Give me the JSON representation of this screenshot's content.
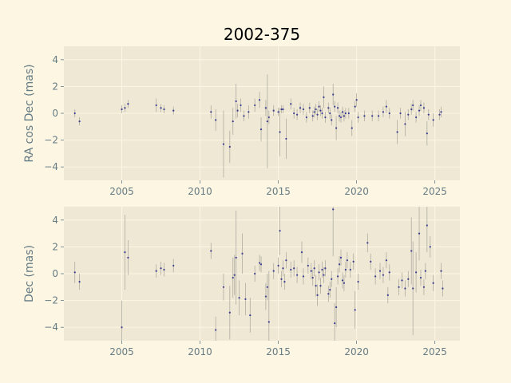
{
  "title": "2002-375",
  "colors": {
    "background": "#fdf6e3",
    "axes": "#eee8d5",
    "grid": "#fdf6e3",
    "point": "#3b3b8f",
    "errorbar": "#b0aca0",
    "text": "#657b83"
  },
  "chart_data": [
    {
      "type": "scatter",
      "ylabel": "RA cos Dec (mas)",
      "xlim": [
        2001.3,
        2026.6
      ],
      "ylim": [
        -5,
        5
      ],
      "xticks": [
        2005,
        2010,
        2015,
        2020,
        2025
      ],
      "yticks": [
        -4,
        -2,
        0,
        2,
        4
      ],
      "grid": true,
      "points": [
        {
          "x": 2002.0,
          "y": 0.0,
          "e": 0.3
        },
        {
          "x": 2002.3,
          "y": -0.6,
          "e": 0.3
        },
        {
          "x": 2005.0,
          "y": 0.3,
          "e": 0.3
        },
        {
          "x": 2005.2,
          "y": 0.4,
          "e": 0.3
        },
        {
          "x": 2005.4,
          "y": 0.7,
          "e": 0.3
        },
        {
          "x": 2007.2,
          "y": 0.6,
          "e": 0.5
        },
        {
          "x": 2007.5,
          "y": 0.4,
          "e": 0.3
        },
        {
          "x": 2007.7,
          "y": 0.3,
          "e": 0.3
        },
        {
          "x": 2008.3,
          "y": 0.2,
          "e": 0.3
        },
        {
          "x": 2010.7,
          "y": 0.1,
          "e": 0.5
        },
        {
          "x": 2011.0,
          "y": -0.5,
          "e": 0.8
        },
        {
          "x": 2011.5,
          "y": -2.3,
          "e": 2.5
        },
        {
          "x": 2011.9,
          "y": -2.5,
          "e": 1.2
        },
        {
          "x": 2012.1,
          "y": -0.6,
          "e": 1.0
        },
        {
          "x": 2012.3,
          "y": 0.9,
          "e": 1.3
        },
        {
          "x": 2012.4,
          "y": 0.2,
          "e": 0.5
        },
        {
          "x": 2012.6,
          "y": 0.6,
          "e": 0.5
        },
        {
          "x": 2012.8,
          "y": -0.2,
          "e": 0.4
        },
        {
          "x": 2013.1,
          "y": 0.1,
          "e": 0.5
        },
        {
          "x": 2013.5,
          "y": 0.6,
          "e": 0.5
        },
        {
          "x": 2013.8,
          "y": 1.0,
          "e": 0.6
        },
        {
          "x": 2013.9,
          "y": -1.2,
          "e": 0.9
        },
        {
          "x": 2014.2,
          "y": 0.4,
          "e": 0.6
        },
        {
          "x": 2014.3,
          "y": -0.6,
          "e": 3.5
        },
        {
          "x": 2014.4,
          "y": -0.3,
          "e": 0.5
        },
        {
          "x": 2014.7,
          "y": 0.2,
          "e": 0.4
        },
        {
          "x": 2015.0,
          "y": 0.1,
          "e": 0.3
        },
        {
          "x": 2015.1,
          "y": -1.4,
          "e": 1.8
        },
        {
          "x": 2015.2,
          "y": 0.3,
          "e": 0.3
        },
        {
          "x": 2015.3,
          "y": 0.3,
          "e": 0.3
        },
        {
          "x": 2015.5,
          "y": -1.9,
          "e": 1.5
        },
        {
          "x": 2015.8,
          "y": 0.7,
          "e": 0.4
        },
        {
          "x": 2016.0,
          "y": 0.0,
          "e": 0.4
        },
        {
          "x": 2016.2,
          "y": -0.1,
          "e": 0.4
        },
        {
          "x": 2016.4,
          "y": 0.4,
          "e": 0.4
        },
        {
          "x": 2016.6,
          "y": 0.3,
          "e": 0.4
        },
        {
          "x": 2016.8,
          "y": -0.3,
          "e": 0.4
        },
        {
          "x": 2017.0,
          "y": 0.4,
          "e": 0.4
        },
        {
          "x": 2017.2,
          "y": -0.2,
          "e": 0.4
        },
        {
          "x": 2017.3,
          "y": 0.1,
          "e": 0.4
        },
        {
          "x": 2017.4,
          "y": 0.3,
          "e": 0.4
        },
        {
          "x": 2017.5,
          "y": -0.1,
          "e": 0.4
        },
        {
          "x": 2017.6,
          "y": 0.5,
          "e": 0.4
        },
        {
          "x": 2017.7,
          "y": 0.2,
          "e": 0.4
        },
        {
          "x": 2017.8,
          "y": 0.0,
          "e": 0.4
        },
        {
          "x": 2017.9,
          "y": 1.2,
          "e": 0.8
        },
        {
          "x": 2018.0,
          "y": -0.3,
          "e": 0.4
        },
        {
          "x": 2018.2,
          "y": 0.4,
          "e": 0.4
        },
        {
          "x": 2018.3,
          "y": 0.0,
          "e": 0.4
        },
        {
          "x": 2018.4,
          "y": -0.5,
          "e": 0.4
        },
        {
          "x": 2018.5,
          "y": 1.4,
          "e": 0.8
        },
        {
          "x": 2018.6,
          "y": 0.5,
          "e": 0.4
        },
        {
          "x": 2018.7,
          "y": -1.1,
          "e": 0.9
        },
        {
          "x": 2018.8,
          "y": 0.4,
          "e": 0.4
        },
        {
          "x": 2018.9,
          "y": -0.2,
          "e": 0.4
        },
        {
          "x": 2019.0,
          "y": -0.3,
          "e": 0.4
        },
        {
          "x": 2019.1,
          "y": 0.1,
          "e": 0.4
        },
        {
          "x": 2019.2,
          "y": -0.2,
          "e": 0.4
        },
        {
          "x": 2019.3,
          "y": 0.0,
          "e": 0.4
        },
        {
          "x": 2019.5,
          "y": 0.0,
          "e": 0.4
        },
        {
          "x": 2019.7,
          "y": -1.1,
          "e": 0.6
        },
        {
          "x": 2019.9,
          "y": 0.5,
          "e": 0.4
        },
        {
          "x": 2020.0,
          "y": 1.0,
          "e": 0.5
        },
        {
          "x": 2020.1,
          "y": -0.3,
          "e": 0.4
        },
        {
          "x": 2020.5,
          "y": -0.2,
          "e": 0.4
        },
        {
          "x": 2021.0,
          "y": -0.2,
          "e": 0.4
        },
        {
          "x": 2021.4,
          "y": -0.2,
          "e": 0.4
        },
        {
          "x": 2021.7,
          "y": 0.1,
          "e": 0.4
        },
        {
          "x": 2021.9,
          "y": 0.5,
          "e": 0.5
        },
        {
          "x": 2022.1,
          "y": 0.0,
          "e": 0.4
        },
        {
          "x": 2022.6,
          "y": -1.4,
          "e": 0.9
        },
        {
          "x": 2022.8,
          "y": 0.0,
          "e": 0.4
        },
        {
          "x": 2023.1,
          "y": -0.8,
          "e": 0.9
        },
        {
          "x": 2023.3,
          "y": -0.1,
          "e": 0.4
        },
        {
          "x": 2023.5,
          "y": 0.3,
          "e": 0.4
        },
        {
          "x": 2023.6,
          "y": 0.6,
          "e": 0.4
        },
        {
          "x": 2023.8,
          "y": -0.3,
          "e": 0.4
        },
        {
          "x": 2024.0,
          "y": 0.2,
          "e": 0.4
        },
        {
          "x": 2024.1,
          "y": 0.6,
          "e": 0.4
        },
        {
          "x": 2024.3,
          "y": 0.4,
          "e": 0.4
        },
        {
          "x": 2024.5,
          "y": -1.5,
          "e": 0.9
        },
        {
          "x": 2024.6,
          "y": -0.1,
          "e": 0.4
        },
        {
          "x": 2024.9,
          "y": -0.5,
          "e": 0.5
        },
        {
          "x": 2025.3,
          "y": -0.1,
          "e": 0.4
        },
        {
          "x": 2025.4,
          "y": 0.1,
          "e": 0.4
        }
      ]
    },
    {
      "type": "scatter",
      "ylabel": "Dec (mas)",
      "xlim": [
        2001.3,
        2026.6
      ],
      "ylim": [
        -5,
        5
      ],
      "xticks": [
        2005,
        2010,
        2015,
        2020,
        2025
      ],
      "yticks": [
        -4,
        -2,
        0,
        2,
        4
      ],
      "grid": true,
      "points": [
        {
          "x": 2002.0,
          "y": 0.1,
          "e": 0.8
        },
        {
          "x": 2002.3,
          "y": -0.6,
          "e": 0.6
        },
        {
          "x": 2005.0,
          "y": -4.0,
          "e": 2.0
        },
        {
          "x": 2005.2,
          "y": 1.6,
          "e": 2.8
        },
        {
          "x": 2005.4,
          "y": 1.2,
          "e": 1.3
        },
        {
          "x": 2007.2,
          "y": 0.2,
          "e": 0.5
        },
        {
          "x": 2007.5,
          "y": 0.4,
          "e": 0.5
        },
        {
          "x": 2007.7,
          "y": 0.3,
          "e": 0.5
        },
        {
          "x": 2008.3,
          "y": 0.6,
          "e": 0.5
        },
        {
          "x": 2010.7,
          "y": 1.7,
          "e": 0.6
        },
        {
          "x": 2011.0,
          "y": -4.2,
          "e": 1.0
        },
        {
          "x": 2011.5,
          "y": -1.0,
          "e": 1.0
        },
        {
          "x": 2011.9,
          "y": -2.9,
          "e": 2.0
        },
        {
          "x": 2012.1,
          "y": -0.3,
          "e": 1.5
        },
        {
          "x": 2012.2,
          "y": -0.1,
          "e": 1.5
        },
        {
          "x": 2012.3,
          "y": 1.2,
          "e": 3.5
        },
        {
          "x": 2012.5,
          "y": -1.8,
          "e": 1.3
        },
        {
          "x": 2012.7,
          "y": 1.5,
          "e": 1.5
        },
        {
          "x": 2012.9,
          "y": -1.9,
          "e": 1.2
        },
        {
          "x": 2013.2,
          "y": -3.1,
          "e": 1.3
        },
        {
          "x": 2013.5,
          "y": 0.0,
          "e": 0.6
        },
        {
          "x": 2013.8,
          "y": 0.8,
          "e": 0.6
        },
        {
          "x": 2013.9,
          "y": 0.7,
          "e": 0.6
        },
        {
          "x": 2014.2,
          "y": -1.7,
          "e": 1.0
        },
        {
          "x": 2014.3,
          "y": -1.0,
          "e": 1.0
        },
        {
          "x": 2014.4,
          "y": -3.6,
          "e": 3.8
        },
        {
          "x": 2014.7,
          "y": 0.2,
          "e": 0.6
        },
        {
          "x": 2015.0,
          "y": 0.6,
          "e": 0.6
        },
        {
          "x": 2015.1,
          "y": 3.2,
          "e": 1.8
        },
        {
          "x": 2015.2,
          "y": -0.4,
          "e": 0.6
        },
        {
          "x": 2015.3,
          "y": 0.4,
          "e": 0.6
        },
        {
          "x": 2015.4,
          "y": -0.6,
          "e": 0.6
        },
        {
          "x": 2015.5,
          "y": 1.0,
          "e": 0.6
        },
        {
          "x": 2015.8,
          "y": 0.3,
          "e": 0.6
        },
        {
          "x": 2016.0,
          "y": 0.4,
          "e": 0.6
        },
        {
          "x": 2016.2,
          "y": -0.1,
          "e": 0.6
        },
        {
          "x": 2016.5,
          "y": 1.6,
          "e": 0.8
        },
        {
          "x": 2016.6,
          "y": -0.2,
          "e": 0.6
        },
        {
          "x": 2016.9,
          "y": 0.6,
          "e": 0.6
        },
        {
          "x": 2017.1,
          "y": 0.2,
          "e": 0.6
        },
        {
          "x": 2017.2,
          "y": -0.3,
          "e": 0.6
        },
        {
          "x": 2017.3,
          "y": 0.4,
          "e": 0.6
        },
        {
          "x": 2017.4,
          "y": -0.9,
          "e": 0.8
        },
        {
          "x": 2017.5,
          "y": -1.6,
          "e": 0.8
        },
        {
          "x": 2017.6,
          "y": 0.1,
          "e": 0.6
        },
        {
          "x": 2017.7,
          "y": -0.9,
          "e": 0.6
        },
        {
          "x": 2017.8,
          "y": 0.3,
          "e": 0.6
        },
        {
          "x": 2017.9,
          "y": -0.1,
          "e": 0.6
        },
        {
          "x": 2018.0,
          "y": 0.4,
          "e": 0.6
        },
        {
          "x": 2018.2,
          "y": -1.5,
          "e": 0.6
        },
        {
          "x": 2018.3,
          "y": -1.2,
          "e": 0.6
        },
        {
          "x": 2018.4,
          "y": -0.4,
          "e": 0.6
        },
        {
          "x": 2018.5,
          "y": 4.8,
          "e": 3.5
        },
        {
          "x": 2018.6,
          "y": -3.7,
          "e": 1.5
        },
        {
          "x": 2018.7,
          "y": -2.5,
          "e": 1.5
        },
        {
          "x": 2018.8,
          "y": -0.2,
          "e": 0.6
        },
        {
          "x": 2018.9,
          "y": 0.7,
          "e": 0.6
        },
        {
          "x": 2019.0,
          "y": 1.2,
          "e": 0.6
        },
        {
          "x": 2019.1,
          "y": -0.5,
          "e": 0.6
        },
        {
          "x": 2019.2,
          "y": -0.7,
          "e": 0.6
        },
        {
          "x": 2019.3,
          "y": 0.3,
          "e": 0.6
        },
        {
          "x": 2019.4,
          "y": 1.0,
          "e": 0.6
        },
        {
          "x": 2019.6,
          "y": 0.3,
          "e": 0.6
        },
        {
          "x": 2019.8,
          "y": 0.9,
          "e": 0.6
        },
        {
          "x": 2019.9,
          "y": -2.7,
          "e": 1.4
        },
        {
          "x": 2020.1,
          "y": -0.6,
          "e": 0.6
        },
        {
          "x": 2020.7,
          "y": 2.3,
          "e": 0.7
        },
        {
          "x": 2020.9,
          "y": 0.9,
          "e": 0.6
        },
        {
          "x": 2021.2,
          "y": -0.2,
          "e": 0.6
        },
        {
          "x": 2021.5,
          "y": 0.2,
          "e": 0.6
        },
        {
          "x": 2021.7,
          "y": -0.1,
          "e": 0.6
        },
        {
          "x": 2021.9,
          "y": 1.0,
          "e": 0.6
        },
        {
          "x": 2022.0,
          "y": -1.6,
          "e": 0.6
        },
        {
          "x": 2022.1,
          "y": 0.1,
          "e": 0.6
        },
        {
          "x": 2022.7,
          "y": -1.0,
          "e": 0.6
        },
        {
          "x": 2022.9,
          "y": -0.5,
          "e": 0.6
        },
        {
          "x": 2023.1,
          "y": -1.1,
          "e": 0.6
        },
        {
          "x": 2023.3,
          "y": -0.4,
          "e": 0.6
        },
        {
          "x": 2023.5,
          "y": 1.7,
          "e": 2.5
        },
        {
          "x": 2023.6,
          "y": -1.1,
          "e": 3.5
        },
        {
          "x": 2023.8,
          "y": 0.1,
          "e": 1.5
        },
        {
          "x": 2024.0,
          "y": 3.0,
          "e": 2.0
        },
        {
          "x": 2024.1,
          "y": -0.3,
          "e": 0.6
        },
        {
          "x": 2024.3,
          "y": -1.0,
          "e": 0.6
        },
        {
          "x": 2024.4,
          "y": 0.2,
          "e": 0.6
        },
        {
          "x": 2024.5,
          "y": 3.6,
          "e": 2.0
        },
        {
          "x": 2024.7,
          "y": 2.0,
          "e": 0.8
        },
        {
          "x": 2024.9,
          "y": -0.7,
          "e": 0.6
        },
        {
          "x": 2025.4,
          "y": 0.2,
          "e": 0.6
        },
        {
          "x": 2025.5,
          "y": -1.1,
          "e": 0.6
        }
      ]
    }
  ]
}
